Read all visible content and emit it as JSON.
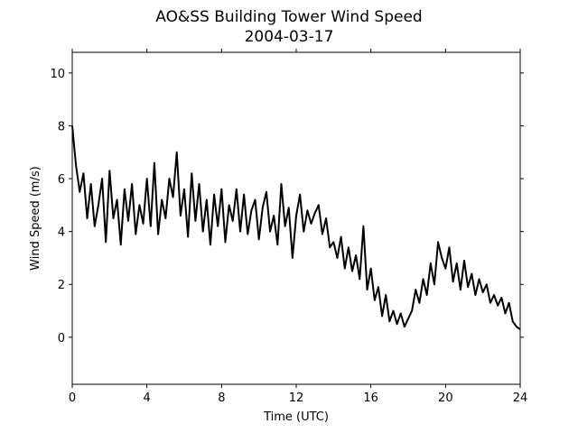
{
  "chart_data": {
    "type": "line",
    "title": "AO&SS Building Tower Wind Speed",
    "subtitle": "2004-03-17",
    "x_label": "Time (UTC)",
    "y_label": "Wind Speed (m/s)",
    "color": "#000000",
    "x": [
      0,
      0.2,
      0.4,
      0.6,
      0.8,
      1,
      1.2,
      1.4,
      1.6,
      1.8,
      2,
      2.2,
      2.4,
      2.6,
      2.8,
      3,
      3.2,
      3.4,
      3.6,
      3.8,
      4,
      4.2,
      4.4,
      4.6,
      4.8,
      5,
      5.2,
      5.4,
      5.6,
      5.8,
      6,
      6.2,
      6.4,
      6.6,
      6.8,
      7,
      7.2,
      7.4,
      7.6,
      7.8,
      8,
      8.2,
      8.4,
      8.6,
      8.8,
      9,
      9.2,
      9.4,
      9.6,
      9.8,
      10,
      10.2,
      10.4,
      10.6,
      10.8,
      11,
      11.2,
      11.4,
      11.6,
      11.8,
      12,
      12.2,
      12.4,
      12.6,
      12.8,
      13,
      13.2,
      13.4,
      13.6,
      13.8,
      14,
      14.2,
      14.4,
      14.6,
      14.8,
      15,
      15.2,
      15.4,
      15.6,
      15.8,
      16,
      16.2,
      16.4,
      16.6,
      16.8,
      17,
      17.2,
      17.4,
      17.6,
      17.8,
      18,
      18.2,
      18.4,
      18.6,
      18.8,
      19,
      19.2,
      19.4,
      19.6,
      19.8,
      20,
      20.2,
      20.4,
      20.6,
      20.8,
      21,
      21.2,
      21.4,
      21.6,
      21.8,
      22,
      22.2,
      22.4,
      22.6,
      22.8,
      23,
      23.2,
      23.4,
      23.6,
      23.8,
      24
    ],
    "values": [
      8.0,
      6.5,
      5.5,
      6.2,
      4.5,
      5.8,
      4.2,
      5.0,
      6.0,
      3.6,
      6.3,
      4.5,
      5.2,
      3.5,
      5.6,
      4.4,
      5.8,
      3.9,
      5.0,
      4.3,
      6.0,
      4.2,
      6.6,
      3.9,
      5.2,
      4.5,
      6.0,
      5.3,
      7.0,
      4.6,
      5.6,
      3.8,
      6.2,
      4.4,
      5.8,
      4.0,
      5.2,
      3.5,
      5.4,
      4.2,
      5.6,
      3.6,
      5.0,
      4.4,
      5.6,
      4.0,
      5.4,
      3.9,
      4.8,
      5.2,
      3.7,
      4.9,
      5.5,
      4.0,
      4.6,
      3.5,
      5.8,
      4.2,
      4.9,
      3.0,
      4.6,
      5.4,
      4.0,
      4.8,
      4.3,
      4.7,
      5.0,
      3.9,
      4.5,
      3.4,
      3.6,
      3.0,
      3.8,
      2.6,
      3.4,
      2.5,
      3.1,
      2.2,
      4.2,
      1.8,
      2.6,
      1.4,
      1.9,
      0.8,
      1.6,
      0.6,
      1.0,
      0.5,
      0.9,
      0.4,
      0.7,
      1.0,
      1.8,
      1.3,
      2.2,
      1.6,
      2.8,
      2.0,
      3.6,
      3.0,
      2.6,
      3.4,
      2.1,
      2.8,
      1.8,
      2.9,
      1.9,
      2.4,
      1.6,
      2.2,
      1.7,
      2.0,
      1.3,
      1.6,
      1.2,
      1.5,
      0.9,
      1.3,
      0.6,
      0.4,
      0.3
    ],
    "xlim": [
      0,
      24
    ],
    "xticks": [
      0,
      4,
      8,
      12,
      16,
      20,
      24
    ],
    "ylim": [
      -1.78,
      10.78
    ],
    "yticks": [
      0,
      2,
      4,
      6,
      8,
      10
    ]
  }
}
